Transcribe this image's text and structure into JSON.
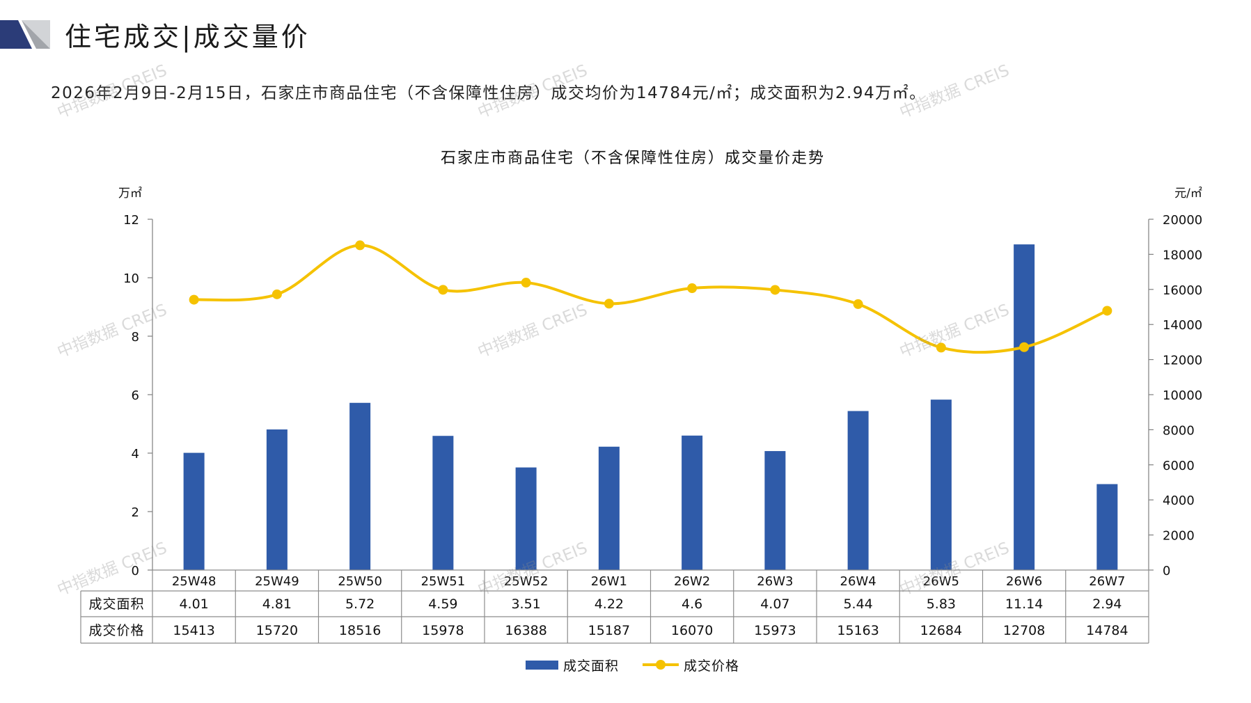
{
  "header": {
    "title": "住宅成交|成交量价"
  },
  "summary": "2026年2月9日-2月15日，石家庄市商品住宅（不含保障性住房）成交均价为14784元/㎡；成交面积为2.94万㎡。",
  "watermark": "中指数据 CREIS",
  "colors": {
    "bar": "#2F5BA9",
    "line": "#F5C200",
    "axis": "#7F7F7F",
    "logo_dark": "#2B3C78",
    "logo_light": "#D2D4D7",
    "logo_mid": "#A2A5AA"
  },
  "chart_data": {
    "type": "bar",
    "title": "石家庄市商品住宅（不含保障性住房）成交量价走势",
    "categories": [
      "25W48",
      "25W49",
      "25W50",
      "25W51",
      "25W52",
      "26W1",
      "26W2",
      "26W3",
      "26W4",
      "26W5",
      "26W6",
      "26W7"
    ],
    "series": [
      {
        "name": "成交面积",
        "type": "bar",
        "axis": "left",
        "values": [
          4.01,
          4.81,
          5.72,
          4.59,
          3.51,
          4.22,
          4.6,
          4.07,
          5.44,
          5.83,
          11.14,
          2.94
        ]
      },
      {
        "name": "成交价格",
        "type": "line",
        "smooth": true,
        "axis": "right",
        "values": [
          15413,
          15720,
          18516,
          15978,
          16388,
          15187,
          16070,
          15973,
          15163,
          12684,
          12708,
          14784
        ]
      }
    ],
    "left_axis": {
      "unit": "万㎡",
      "ylim": [
        0,
        12
      ],
      "ticks": [
        0,
        2,
        4,
        6,
        8,
        10,
        12
      ]
    },
    "right_axis": {
      "unit": "元/㎡",
      "ylim": [
        0,
        20000
      ],
      "ticks": [
        0,
        2000,
        4000,
        6000,
        8000,
        10000,
        12000,
        14000,
        16000,
        18000,
        20000
      ]
    },
    "data_table": true,
    "legend": "bottom",
    "grid": false
  }
}
